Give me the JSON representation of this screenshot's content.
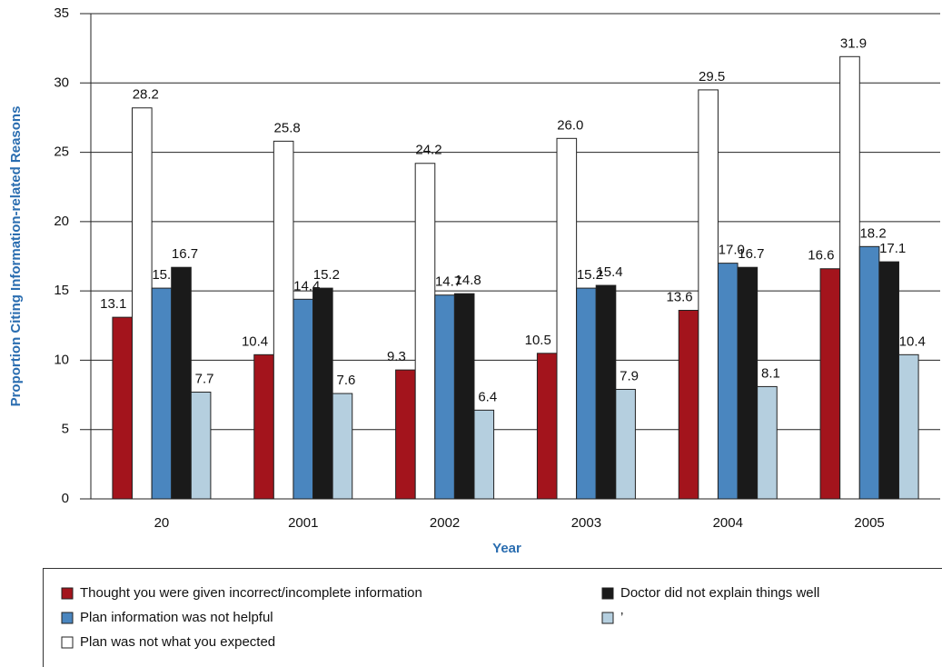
{
  "chart_data": {
    "type": "bar",
    "xlabel": "Year",
    "ylabel": "Proportion Citing Information-related Reasons",
    "categories": [
      "20",
      "2001",
      "2002",
      "2003",
      "2004",
      "2005"
    ],
    "series": [
      {
        "name": "Thought you were given incorrect/incomplete information",
        "color": "#a3141c",
        "values": [
          13.1,
          10.4,
          9.3,
          10.5,
          13.6,
          16.6
        ],
        "value_labels": [
          "13.1",
          "10.4",
          "9.3",
          "10.5",
          "13.6",
          "16.6"
        ]
      },
      {
        "name": "Plan information was not helpful",
        "color": "#4a86bf",
        "values": [
          15.2,
          14.4,
          14.7,
          15.2,
          17.0,
          18.2
        ],
        "value_labels": [
          "15.2",
          "14.4",
          "14.7",
          "15.2",
          "17.0",
          "18.2"
        ]
      },
      {
        "name": "Plan was not what you expected",
        "color": "#ffffff",
        "values": [
          28.2,
          25.8,
          24.2,
          26.0,
          29.5,
          31.9
        ],
        "value_labels": [
          "28.2",
          "25.8",
          "24.2",
          "26.0",
          "29.5",
          "31.9"
        ]
      },
      {
        "name": "Doctor did not explain things well",
        "color": "#1a1a1a",
        "values": [
          16.7,
          15.2,
          14.8,
          15.4,
          16.7,
          17.1
        ],
        "value_labels": [
          "16.7",
          "15.2",
          "14.8",
          "15.4",
          "16.7",
          "17.1"
        ]
      },
      {
        "name": "’",
        "color": "#b5cfdf",
        "values": [
          7.7,
          7.6,
          6.4,
          7.9,
          8.1,
          10.4
        ],
        "value_labels": [
          "7.7",
          "7.6",
          "6.4",
          "7.9",
          "8.1",
          "10.4"
        ]
      }
    ],
    "ylim": [
      0,
      35
    ],
    "yticks": [
      0,
      5,
      10,
      15,
      20,
      25,
      30,
      35
    ],
    "grid": true
  }
}
